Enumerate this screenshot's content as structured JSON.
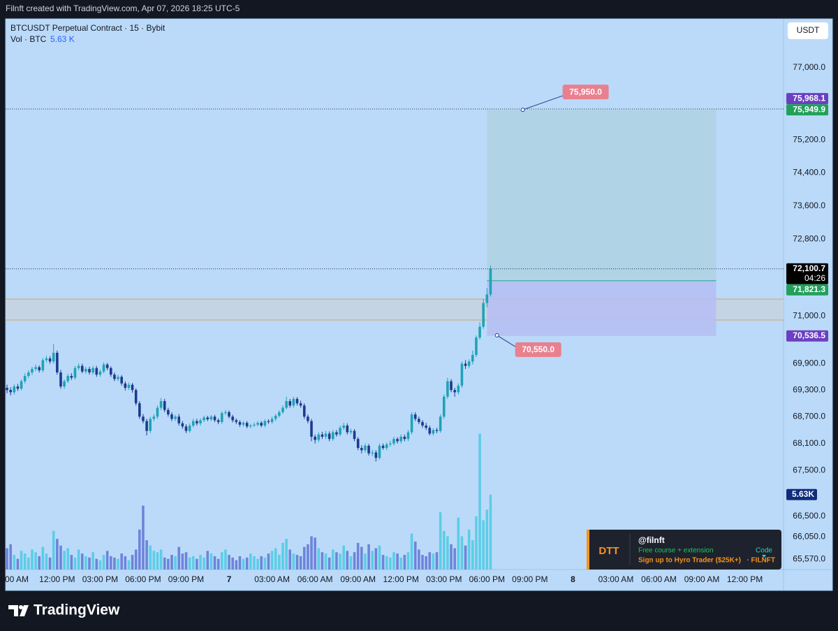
{
  "header": {
    "watermark": "Filnft created with TradingView.com, Apr 07, 2026 18:25 UTC-5"
  },
  "chart_data": {
    "type": "candlestick",
    "title": "BTCUSDT Perpetual Contract · 15 · Bybit",
    "volume_legend": {
      "name": "Vol · BTC",
      "value": 5630,
      "label": "5.63 K"
    },
    "currency": "USDT",
    "log_scale": true,
    "grid": false,
    "x": [
      -0.5,
      -0.25,
      0,
      0.25,
      0.5,
      0.75,
      1,
      1.25,
      1.5,
      1.75,
      2,
      2.25,
      2.5,
      2.75,
      3,
      3.25,
      3.5,
      3.75,
      4,
      4.25,
      4.5,
      4.75,
      5,
      5.25,
      5.5,
      5.75,
      6,
      6.25,
      6.5,
      6.75,
      7,
      7.25,
      7.5,
      7.75,
      8,
      8.25,
      8.5,
      8.75,
      9,
      9.25,
      9.5,
      9.75,
      10,
      10.25,
      10.5,
      10.75,
      11,
      11.25,
      11.5,
      11.75,
      12,
      12.25,
      12.5,
      12.75,
      13,
      13.25,
      13.5,
      13.75,
      14,
      14.25,
      14.5,
      14.75,
      15,
      15.25,
      15.5,
      15.75,
      16,
      16.25,
      16.5,
      16.75,
      17,
      17.25,
      17.5,
      17.75,
      18,
      18.25,
      18.5,
      18.75,
      19,
      19.25,
      19.5,
      19.75,
      20,
      20.25,
      20.5,
      20.75,
      21,
      21.25,
      21.5,
      21.75,
      22,
      22.25,
      22.5,
      22.75,
      23,
      23.25,
      23.5,
      23.75,
      24,
      24.25,
      24.5,
      24.75,
      25,
      25.25,
      25.5,
      25.75,
      26,
      26.25,
      26.5,
      26.75,
      27,
      27.25,
      27.5,
      27.75,
      28,
      28.25,
      28.5,
      28.75,
      29,
      29.25,
      29.5,
      29.75,
      30,
      30.25,
      30.5,
      30.75,
      31,
      31.25,
      31.5,
      31.75,
      32,
      32.25,
      32.5,
      32.75,
      33,
      33.25
    ],
    "open": [
      69350,
      69300,
      69250,
      69380,
      69330,
      69500,
      69620,
      69700,
      69780,
      69820,
      69750,
      69980,
      70020,
      69950,
      70150,
      69700,
      69380,
      69500,
      69620,
      69580,
      69800,
      69850,
      69720,
      69780,
      69700,
      69800,
      69650,
      69720,
      69880,
      69800,
      69650,
      69550,
      69600,
      69450,
      69350,
      69420,
      69300,
      69000,
      68700,
      68600,
      68380,
      68650,
      68700,
      68900,
      69050,
      68850,
      68750,
      68650,
      68700,
      68550,
      68480,
      68380,
      68500,
      68600,
      68550,
      68620,
      68680,
      68640,
      68700,
      68620,
      68580,
      68780,
      68800,
      68700,
      68620,
      68580,
      68520,
      68560,
      68480,
      68500,
      68520,
      68560,
      68500,
      68600,
      68580,
      68650,
      68720,
      68800,
      68900,
      69050,
      68950,
      69100,
      69000,
      68950,
      68700,
      68600,
      68250,
      68180,
      68300,
      68250,
      68320,
      68200,
      68350,
      68300,
      68450,
      68500,
      68350,
      68380,
      68200,
      68000,
      67950,
      68050,
      67880,
      67900,
      67780,
      68050,
      68000,
      68080,
      68100,
      68200,
      68150,
      68250,
      68200,
      68350,
      68750,
      68650,
      68580,
      68500,
      68450,
      68320,
      68400,
      68380,
      68700,
      69150,
      69500,
      69300,
      69250,
      69400,
      69900,
      69850,
      69950,
      70100,
      70500,
      70750,
      71300,
      71500
    ],
    "high": [
      69420,
      69360,
      69430,
      69440,
      69540,
      69680,
      69750,
      69830,
      69880,
      69860,
      70030,
      70080,
      70070,
      70350,
      70200,
      69760,
      69540,
      69670,
      69680,
      69850,
      69900,
      69900,
      69830,
      69830,
      69850,
      69850,
      69770,
      69930,
      69920,
      69840,
      69700,
      69650,
      69640,
      69500,
      69470,
      69460,
      69340,
      69050,
      68760,
      68650,
      68700,
      68750,
      68950,
      69120,
      69100,
      68900,
      68800,
      68740,
      68760,
      68600,
      68530,
      68550,
      68650,
      68650,
      68660,
      68720,
      68720,
      68740,
      68740,
      68660,
      68820,
      68850,
      68840,
      68740,
      68660,
      68620,
      68600,
      68600,
      68540,
      68570,
      68600,
      68600,
      68640,
      68640,
      68700,
      68760,
      68840,
      68950,
      69150,
      69100,
      69150,
      69140,
      69060,
      69000,
      68750,
      68650,
      68300,
      68350,
      68360,
      68380,
      68370,
      68400,
      68400,
      68500,
      68560,
      68550,
      68430,
      68420,
      68240,
      68060,
      68100,
      68090,
      67960,
      67950,
      68100,
      68100,
      68120,
      68160,
      68250,
      68240,
      68300,
      68300,
      68400,
      68800,
      68800,
      68700,
      68620,
      68560,
      68500,
      68440,
      68450,
      68750,
      69200,
      69580,
      69550,
      69350,
      69450,
      69950,
      69980,
      70000,
      70200,
      70550,
      70850,
      71400,
      71650,
      72180
    ],
    "low": [
      69230,
      69180,
      69200,
      69280,
      69290,
      69450,
      69570,
      69640,
      69730,
      69700,
      69700,
      69930,
      69900,
      69900,
      69650,
      69330,
      69330,
      69460,
      69530,
      69540,
      69750,
      69680,
      69670,
      69650,
      69650,
      69600,
      69600,
      69680,
      69750,
      69600,
      69500,
      69500,
      69400,
      69290,
      69300,
      69240,
      68950,
      68650,
      68550,
      68280,
      68330,
      68600,
      68650,
      68850,
      68800,
      68700,
      68600,
      68600,
      68500,
      68430,
      68330,
      68340,
      68460,
      68500,
      68500,
      68580,
      68600,
      68600,
      68580,
      68530,
      68540,
      68740,
      68660,
      68570,
      68530,
      68470,
      68480,
      68440,
      68440,
      68470,
      68480,
      68460,
      68460,
      68540,
      68540,
      68600,
      68680,
      68760,
      68860,
      68900,
      68900,
      68950,
      68900,
      68650,
      68550,
      68150,
      68100,
      68130,
      68200,
      68200,
      68150,
      68160,
      68250,
      68260,
      68400,
      68300,
      68300,
      68150,
      67950,
      67880,
      67900,
      67830,
      67820,
      67700,
      67740,
      67960,
      67950,
      68030,
      68060,
      68100,
      68100,
      68150,
      68150,
      68300,
      68600,
      68530,
      68450,
      68400,
      68280,
      68280,
      68330,
      68340,
      68650,
      69100,
      69250,
      69150,
      69200,
      69350,
      69780,
      69800,
      69880,
      70050,
      70450,
      70700,
      71200,
      71450
    ],
    "close": [
      69300,
      69250,
      69380,
      69330,
      69500,
      69620,
      69700,
      69780,
      69820,
      69750,
      69980,
      70020,
      69950,
      70150,
      69700,
      69380,
      69500,
      69620,
      69580,
      69800,
      69850,
      69720,
      69780,
      69700,
      69800,
      69650,
      69720,
      69880,
      69800,
      69650,
      69550,
      69600,
      69450,
      69350,
      69420,
      69300,
      69000,
      68700,
      68600,
      68380,
      68650,
      68700,
      68900,
      69050,
      68850,
      68750,
      68650,
      68700,
      68550,
      68480,
      68380,
      68500,
      68600,
      68550,
      68620,
      68680,
      68640,
      68700,
      68620,
      68580,
      68780,
      68800,
      68700,
      68620,
      68580,
      68520,
      68560,
      68480,
      68500,
      68520,
      68560,
      68500,
      68600,
      68580,
      68650,
      68720,
      68800,
      68900,
      69050,
      68950,
      69100,
      69000,
      68950,
      68700,
      68600,
      68250,
      68180,
      68300,
      68250,
      68320,
      68200,
      68350,
      68300,
      68450,
      68500,
      68350,
      68380,
      68200,
      68000,
      67950,
      68050,
      67880,
      67900,
      67780,
      68050,
      68000,
      68080,
      68100,
      68200,
      68150,
      68250,
      68200,
      68350,
      68750,
      68650,
      68580,
      68500,
      68450,
      68320,
      68400,
      68380,
      68700,
      69150,
      69500,
      69300,
      69250,
      69400,
      69900,
      69850,
      69950,
      70100,
      70500,
      70750,
      71300,
      71500,
      72100
    ],
    "volume": [
      1600,
      1900,
      1100,
      800,
      1400,
      1200,
      900,
      1500,
      1300,
      1000,
      1700,
      1200,
      900,
      2900,
      2300,
      1800,
      1400,
      1600,
      1100,
      900,
      1500,
      1200,
      1000,
      900,
      1300,
      800,
      700,
      1100,
      1400,
      1000,
      900,
      800,
      1200,
      1000,
      700,
      1100,
      1500,
      3000,
      4800,
      2200,
      1800,
      1400,
      1300,
      1500,
      900,
      800,
      1100,
      1000,
      1700,
      1200,
      1300,
      900,
      1000,
      800,
      1100,
      900,
      1400,
      1200,
      1000,
      800,
      1300,
      1500,
      1100,
      900,
      700,
      1000,
      800,
      900,
      1200,
      1000,
      800,
      1000,
      900,
      1200,
      1400,
      1600,
      1100,
      2000,
      2300,
      1500,
      1200,
      1100,
      1000,
      1700,
      1900,
      2500,
      2400,
      1600,
      1300,
      1200,
      900,
      1500,
      1300,
      1200,
      1800,
      1400,
      1000,
      1300,
      2000,
      1700,
      1200,
      1900,
      1400,
      1600,
      1800,
      1100,
      1000,
      900,
      1300,
      1200,
      900,
      1100,
      1300,
      2700,
      2100,
      1500,
      1100,
      1000,
      1300,
      1200,
      1300,
      4300,
      2900,
      2500,
      1900,
      1600,
      3900,
      2500,
      1800,
      3000,
      2200,
      4000,
      10200,
      3700,
      4500,
      5630
    ],
    "up_color": "#1ea3b6",
    "down_color": "#1c3a8c",
    "volume_up_color": "#5ccde6",
    "volume_down_color": "#6d84da",
    "xlim": [
      -0.6,
      53.7
    ],
    "xticks": [
      {
        "value": 0,
        "label": "00 AM"
      },
      {
        "value": 3,
        "label": "12:00 PM"
      },
      {
        "value": 6,
        "label": "03:00 PM"
      },
      {
        "value": 9,
        "label": "06:00 PM"
      },
      {
        "value": 12,
        "label": "09:00 PM"
      },
      {
        "value": 15,
        "label": "7"
      },
      {
        "value": 18,
        "label": "03:00 AM"
      },
      {
        "value": 21,
        "label": "06:00 AM"
      },
      {
        "value": 24,
        "label": "09:00 AM"
      },
      {
        "value": 27,
        "label": "12:00 PM"
      },
      {
        "value": 30,
        "label": "03:00 PM"
      },
      {
        "value": 33,
        "label": "06:00 PM"
      },
      {
        "value": 36,
        "label": "09:00 PM"
      },
      {
        "value": 39,
        "label": "8"
      },
      {
        "value": 42,
        "label": "03:00 AM"
      },
      {
        "value": 45,
        "label": "06:00 AM"
      },
      {
        "value": 48,
        "label": "09:00 AM"
      },
      {
        "value": 51,
        "label": "12:00 PM"
      }
    ],
    "ylim": [
      65351,
      78241
    ],
    "yticks": [
      {
        "value": 77000,
        "label": "77,000.0"
      },
      {
        "value": 75200,
        "label": "75,200.0"
      },
      {
        "value": 74400,
        "label": "74,400.0"
      },
      {
        "value": 73600,
        "label": "73,600.0"
      },
      {
        "value": 72800,
        "label": "72,800.0"
      },
      {
        "value": 71000,
        "label": "71,000.0"
      },
      {
        "value": 69900,
        "label": "69,900.0"
      },
      {
        "value": 69300,
        "label": "69,300.0"
      },
      {
        "value": 68700,
        "label": "68,700.0"
      },
      {
        "value": 68100,
        "label": "68,100.0"
      },
      {
        "value": 67500,
        "label": "67,500.0"
      },
      {
        "value": 66500,
        "label": "66,500.0"
      },
      {
        "value": 66050,
        "label": "66,050.0"
      },
      {
        "value": 65570,
        "label": "65,570.0"
      }
    ],
    "y2lim": [
      0,
      21000
    ],
    "y2_labels": [
      {
        "value": 5630,
        "label": "5.63K",
        "color": "#0f2d7c"
      }
    ],
    "price_labels": [
      {
        "value": 75968.1,
        "label": "75,968.1",
        "color": "#6b3fc2",
        "line": true
      },
      {
        "value": 75949.9,
        "label": "75,949.9",
        "color": "#22a05a"
      },
      {
        "value": 72100.7,
        "label": "72,100.7",
        "color": "#000000",
        "line": true,
        "countdown": "04:26"
      },
      {
        "value": 71821.3,
        "label": "71,821.3",
        "color": "#22a05a"
      },
      {
        "value": 70536.5,
        "label": "70,536.5",
        "color": "#6b3fc2"
      }
    ],
    "position": {
      "x_start": 33,
      "x_end": 49,
      "entry": 71821.3,
      "target": 75949.9,
      "stop": 70536.5,
      "profit_color": "#afd3e3",
      "loss_color": "#b6bff3",
      "entry_color": "#26a69a"
    },
    "zone": {
      "top": 71392,
      "bottom": 70904,
      "color": "#c7d2de",
      "border_color": "#d2a56c"
    },
    "annotations": [
      {
        "value": 75950,
        "label": "75,950.0",
        "x": 35.5
      },
      {
        "value": 70550,
        "label": "70,550.0",
        "x": 33.7
      }
    ],
    "annotation_color": "#e8808f"
  },
  "promo": {
    "brand": "DTT",
    "handle": "@filnft",
    "line1": "Free course + extension",
    "code_label": "Code",
    "line2": "Sign up to Hyro Trader ($25K+)",
    "code": "· FILNFT"
  },
  "footer": {
    "logo": "TradingView"
  }
}
